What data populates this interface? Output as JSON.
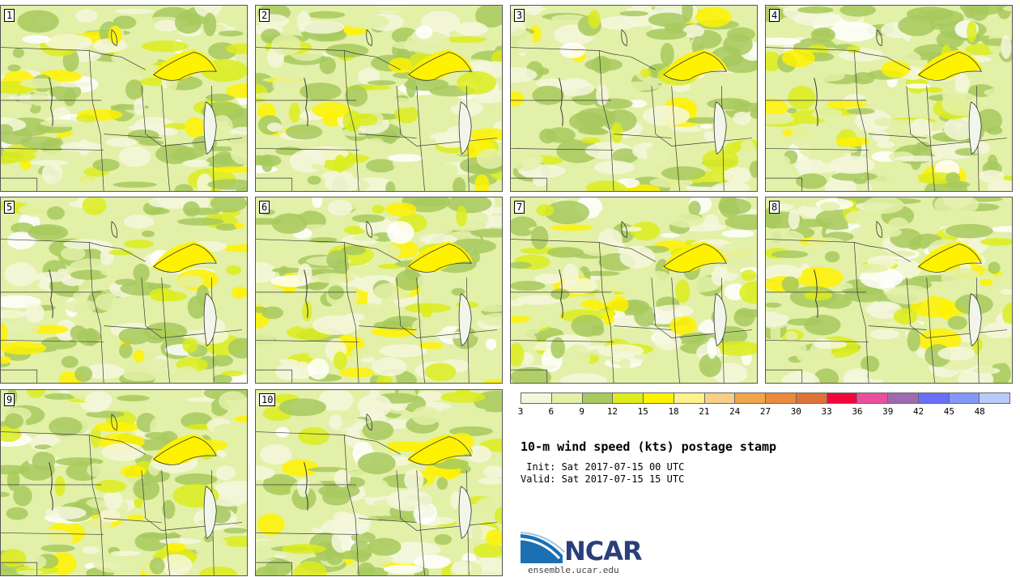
{
  "stamps": [
    {
      "label": "1"
    },
    {
      "label": "2"
    },
    {
      "label": "3"
    },
    {
      "label": "4"
    },
    {
      "label": "5"
    },
    {
      "label": "6"
    },
    {
      "label": "7"
    },
    {
      "label": "8"
    },
    {
      "label": "9"
    },
    {
      "label": "10"
    }
  ],
  "colorbar": {
    "colors": [
      "#f5f7dd",
      "#e3f0a8",
      "#a7c95e",
      "#dcec1d",
      "#fff200",
      "#fff08a",
      "#f7cf88",
      "#f0a64c",
      "#ea8a3c",
      "#df7238",
      "#f0083d",
      "#ea509e",
      "#9e6bb0",
      "#6a6ff7",
      "#8398f7",
      "#b9cbf8"
    ],
    "ticks": [
      "3",
      "6",
      "9",
      "12",
      "15",
      "18",
      "21",
      "24",
      "27",
      "30",
      "33",
      "36",
      "39",
      "42",
      "45",
      "48"
    ]
  },
  "title": "10-m wind speed (kts) postage stamp",
  "init": " Init: Sat 2017-07-15 00 UTC",
  "valid": "Valid: Sat 2017-07-15 15 UTC",
  "logo": {
    "name": "NCAR",
    "site": "ensemble.ucar.edu",
    "icon": "ncar-swoosh-icon"
  }
}
